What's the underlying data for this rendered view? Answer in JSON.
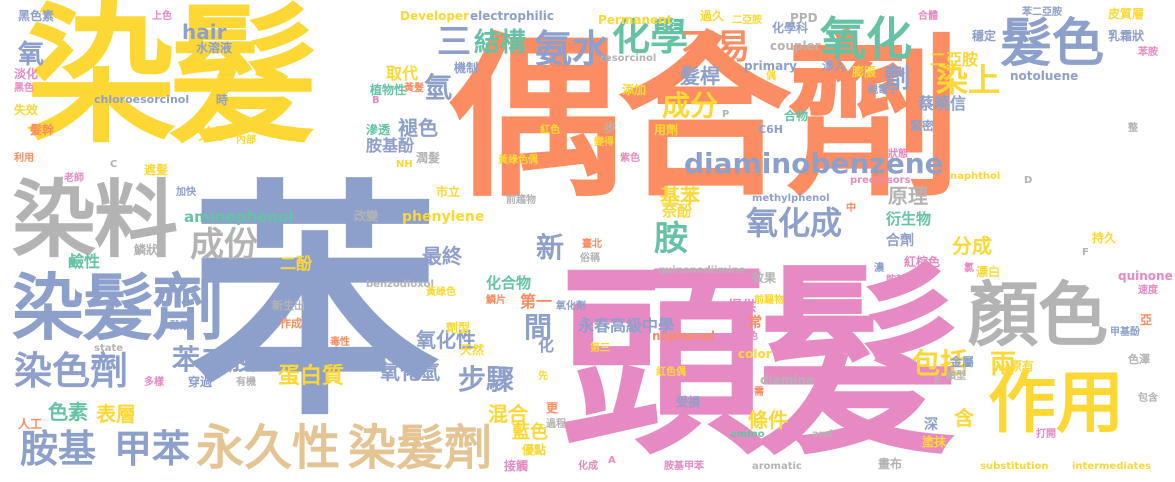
{
  "palette": {
    "yellow": "#fdd835",
    "salmon": "#fc8d62",
    "pink": "#e78ac3",
    "periwinkle": "#8da0cb",
    "gray": "#b3b3b3",
    "tan": "#e5c494",
    "green": "#66c2a5",
    "lime": "#a6d854"
  },
  "words": [
    {
      "text": "染髮",
      "color": "yellow"
    },
    {
      "text": "偶合劑",
      "color": "salmon"
    },
    {
      "text": "頭髮",
      "color": "pink"
    },
    {
      "text": "苯",
      "color": "periwinkle"
    },
    {
      "text": "染料",
      "color": "gray"
    },
    {
      "text": "染髮劑",
      "color": "periwinkle"
    },
    {
      "text": "顏色",
      "color": "gray"
    },
    {
      "text": "作用",
      "color": "yellow"
    },
    {
      "text": "髮色",
      "color": "periwinkle"
    },
    {
      "text": "氧化",
      "color": "green"
    },
    {
      "text": "化學",
      "color": "green"
    },
    {
      "text": "氨水",
      "color": "periwinkle"
    },
    {
      "text": "三",
      "color": "periwinkle"
    },
    {
      "text": "結構",
      "color": "green"
    },
    {
      "text": "不易",
      "color": "salmon"
    },
    {
      "text": "染上",
      "color": "yellow"
    },
    {
      "text": "diaminobenzene",
      "color": "periwinkle"
    },
    {
      "text": "氧化成",
      "color": "periwinkle"
    },
    {
      "text": "成份",
      "color": "gray"
    },
    {
      "text": "永久性",
      "color": "tan"
    },
    {
      "text": "染髮劑",
      "color": "tan"
    },
    {
      "text": "胺基",
      "color": "periwinkle"
    },
    {
      "text": "甲苯",
      "color": "periwinkle"
    },
    {
      "text": "染色劑",
      "color": "periwinkle"
    },
    {
      "text": "苯二胺",
      "color": "periwinkle"
    },
    {
      "text": "步驟",
      "color": "periwinkle"
    },
    {
      "text": "間",
      "color": "periwinkle"
    },
    {
      "text": "胺",
      "color": "green"
    },
    {
      "text": "包括",
      "color": "yellow"
    },
    {
      "text": "兩",
      "color": "yellow"
    },
    {
      "text": "成分",
      "color": "yellow"
    },
    {
      "text": "氫",
      "color": "periwinkle"
    },
    {
      "text": "氧化氫",
      "color": "periwinkle"
    },
    {
      "text": "氧化性",
      "color": "periwinkle"
    },
    {
      "text": "蛋白質",
      "color": "yellow"
    },
    {
      "text": "色素",
      "color": "green"
    },
    {
      "text": "表層",
      "color": "yellow"
    },
    {
      "text": "混合",
      "color": "yellow"
    },
    {
      "text": "原理",
      "color": "gray"
    },
    {
      "text": "基苯",
      "color": "yellow"
    },
    {
      "text": "新",
      "color": "periwinkle"
    },
    {
      "text": "最終",
      "color": "periwinkle"
    },
    {
      "text": "條件",
      "color": "yellow"
    },
    {
      "text": "藍色",
      "color": "yellow"
    },
    {
      "text": "分成",
      "color": "yellow"
    },
    {
      "text": "髮桿",
      "color": "periwinkle"
    },
    {
      "text": "劑",
      "color": "periwinkle"
    },
    {
      "text": "二亞胺",
      "color": "yellow"
    },
    {
      "text": "蔡曉信",
      "color": "periwinkle"
    },
    {
      "text": "aminophenol",
      "color": "green"
    },
    {
      "text": "hair",
      "color": "periwinkle"
    },
    {
      "text": "氧",
      "color": "periwinkle"
    },
    {
      "text": "取代",
      "color": "yellow"
    },
    {
      "text": "褪色",
      "color": "periwinkle"
    },
    {
      "text": "胺基酚",
      "color": "periwinkle"
    },
    {
      "text": "分子",
      "color": "yellow"
    },
    {
      "text": "鹼性",
      "color": "green"
    },
    {
      "text": "二酚",
      "color": "yellow"
    },
    {
      "text": "第一",
      "color": "salmon"
    },
    {
      "text": "化合物",
      "color": "green"
    },
    {
      "text": "奈酚",
      "color": "yellow"
    },
    {
      "text": "衍生物",
      "color": "green"
    },
    {
      "text": "合劑",
      "color": "periwinkle"
    },
    {
      "text": "含",
      "color": "yellow"
    },
    {
      "text": "phenylene",
      "color": "yellow"
    },
    {
      "text": "永春高級中學",
      "color": "periwinkle"
    },
    {
      "text": "化",
      "color": "periwinkle"
    },
    {
      "text": "Developer",
      "color": "yellow"
    },
    {
      "text": "electrophilic",
      "color": "periwinkle"
    },
    {
      "text": "Permanent",
      "color": "yellow"
    },
    {
      "text": "過久",
      "color": "yellow"
    },
    {
      "text": "二亞胺",
      "color": "yellow"
    },
    {
      "text": "PPD",
      "color": "gray"
    },
    {
      "text": "苯二亞胺",
      "color": "periwinkle"
    },
    {
      "text": "皮質層",
      "color": "yellow"
    },
    {
      "text": "乳霜狀",
      "color": "periwinkle"
    },
    {
      "text": "苯胺",
      "color": "pink"
    },
    {
      "text": "黑色素",
      "color": "periwinkle"
    },
    {
      "text": "水溶液",
      "color": "periwinkle"
    },
    {
      "text": "機制",
      "color": "periwinkle"
    },
    {
      "text": "resorcinol",
      "color": "gray"
    },
    {
      "text": "primary",
      "color": "periwinkle"
    },
    {
      "text": "化學科",
      "color": "periwinkle"
    },
    {
      "text": "coupler",
      "color": "gray"
    },
    {
      "text": "穩定",
      "color": "periwinkle"
    },
    {
      "text": "notoluene",
      "color": "periwinkle"
    },
    {
      "text": "淡化",
      "color": "pink"
    },
    {
      "text": "黑色",
      "color": "pink"
    },
    {
      "text": "失效",
      "color": "yellow"
    },
    {
      "text": "髮幹",
      "color": "salmon"
    },
    {
      "text": "chloroesorcinol",
      "color": "periwinkle"
    },
    {
      "text": "時",
      "color": "periwinkle"
    },
    {
      "text": "植物性",
      "color": "green"
    },
    {
      "text": "添加",
      "color": "yellow"
    },
    {
      "text": "膨脹",
      "color": "yellow"
    },
    {
      "text": "滲入",
      "color": "periwinkle"
    },
    {
      "text": "親電子",
      "color": "periwinkle"
    },
    {
      "text": "緊密",
      "color": "periwinkle"
    },
    {
      "text": "合物",
      "color": "green"
    },
    {
      "text": "紅色",
      "color": "yellow"
    },
    {
      "text": "用劑",
      "color": "yellow"
    },
    {
      "text": "C6H",
      "color": "periwinkle"
    },
    {
      "text": "變得",
      "color": "yellow"
    },
    {
      "text": "滲透",
      "color": "green"
    },
    {
      "text": "內部",
      "color": "yellow"
    },
    {
      "text": "潤髮",
      "color": "gray"
    },
    {
      "text": "遮髮",
      "color": "yellow"
    },
    {
      "text": "老師",
      "color": "pink"
    },
    {
      "text": "利用",
      "color": "salmon"
    },
    {
      "text": "市立",
      "color": "yellow"
    },
    {
      "text": "precursors",
      "color": "pink"
    },
    {
      "text": "naphthol",
      "color": "yellow"
    },
    {
      "text": "前趨物",
      "color": "gray"
    },
    {
      "text": "methylphenol",
      "color": "periwinkle"
    },
    {
      "text": "改變",
      "color": "gray"
    },
    {
      "text": "鱗狀",
      "color": "gray"
    },
    {
      "text": "臺北",
      "color": "salmon"
    },
    {
      "text": "俗稱",
      "color": "gray"
    },
    {
      "text": "quinonediimine",
      "color": "gray"
    },
    {
      "text": "效果",
      "color": "gray"
    },
    {
      "text": "持久",
      "color": "yellow"
    },
    {
      "text": "漂白",
      "color": "yellow"
    },
    {
      "text": "quinone",
      "color": "pink"
    },
    {
      "text": "速度",
      "color": "pink"
    },
    {
      "text": "新生出",
      "color": "gray"
    },
    {
      "text": "benzodioxol",
      "color": "gray"
    },
    {
      "text": "作成",
      "color": "salmon"
    },
    {
      "text": "劑型",
      "color": "yellow"
    },
    {
      "text": "天然",
      "color": "yellow"
    },
    {
      "text": "第三",
      "color": "yellow"
    },
    {
      "text": "color",
      "color": "yellow"
    },
    {
      "text": "無色",
      "color": "pink"
    },
    {
      "text": "金屬",
      "color": "periwinkle"
    },
    {
      "text": "甲基酚",
      "color": "periwinkle"
    },
    {
      "text": "亞",
      "color": "salmon"
    },
    {
      "text": "色澤",
      "color": "gray"
    },
    {
      "text": "diamine",
      "color": "gray"
    },
    {
      "text": "紅色偶",
      "color": "yellow"
    },
    {
      "text": "受損",
      "color": "periwinkle"
    },
    {
      "text": "更",
      "color": "salmon"
    },
    {
      "text": "優點",
      "color": "yellow"
    },
    {
      "text": "塗抹",
      "color": "yellow"
    },
    {
      "text": "深",
      "color": "periwinkle"
    },
    {
      "text": "人工",
      "color": "salmon"
    },
    {
      "text": "接觸",
      "color": "pink"
    },
    {
      "text": "化成",
      "color": "pink"
    },
    {
      "text": "胺基甲苯",
      "color": "pink"
    },
    {
      "text": "aromatic",
      "color": "gray"
    },
    {
      "text": "畫布",
      "color": "gray"
    },
    {
      "text": "substitution",
      "color": "yellow"
    },
    {
      "text": "intermediates",
      "color": "yellow"
    },
    {
      "text": "打開",
      "color": "pink"
    },
    {
      "text": "amino",
      "color": "green"
    },
    {
      "text": "ami",
      "color": "gray"
    },
    {
      "text": "dimine",
      "color": "pink"
    },
    {
      "text": "原有",
      "color": "yellow"
    },
    {
      "text": "穿過",
      "color": "periwinkle"
    },
    {
      "text": "有機",
      "color": "gray"
    },
    {
      "text": "nophenol",
      "color": "salmon"
    },
    {
      "text": "狀態",
      "color": "pink"
    },
    {
      "text": "酚類",
      "color": "periwinkle"
    },
    {
      "text": "state",
      "color": "gray"
    },
    {
      "text": "多樣",
      "color": "pink"
    },
    {
      "text": "上色",
      "color": "pink"
    },
    {
      "text": "毒性",
      "color": "salmon"
    },
    {
      "text": "萘類",
      "color": "periwinkle"
    },
    {
      "text": "加快",
      "color": "periwinkle"
    },
    {
      "text": "類型",
      "color": "gray"
    },
    {
      "text": "前驅物",
      "color": "yellow"
    },
    {
      "text": "提供",
      "color": "pink"
    },
    {
      "text": "常",
      "color": "salmon"
    },
    {
      "text": "需",
      "color": "salmon"
    },
    {
      "text": "過程",
      "color": "gray"
    },
    {
      "text": "包含",
      "color": "gray"
    },
    {
      "text": "紫色",
      "color": "pink"
    },
    {
      "text": "黃綠色偶",
      "color": "yellow"
    },
    {
      "text": "氧化劑",
      "color": "periwinkle"
    },
    {
      "text": "鱗片",
      "color": "salmon"
    },
    {
      "text": "步",
      "color": "gray"
    },
    {
      "text": "先",
      "color": "yellow"
    },
    {
      "text": "diami",
      "color": "pink"
    },
    {
      "text": "黃綠色",
      "color": "yellow"
    },
    {
      "text": "紅棕色",
      "color": "pink"
    },
    {
      "text": "濃",
      "color": "periwinkle"
    },
    {
      "text": "胺基",
      "color": "pink"
    },
    {
      "text": "氯",
      "color": "pink"
    },
    {
      "text": "合體",
      "color": "pink"
    },
    {
      "text": "黃髮",
      "color": "salmon"
    },
    {
      "text": "偶",
      "color": "yellow"
    },
    {
      "text": "整",
      "color": "gray"
    },
    {
      "text": "中",
      "color": "salmon"
    },
    {
      "text": "F",
      "color": "gray"
    },
    {
      "text": "D",
      "color": "gray"
    },
    {
      "text": "C",
      "color": "gray"
    },
    {
      "text": "P",
      "color": "gray"
    },
    {
      "text": "E",
      "color": "gray"
    },
    {
      "text": "A",
      "color": "pink"
    },
    {
      "text": "B",
      "color": "pink"
    },
    {
      "text": "NH",
      "color": "yellow"
    },
    {
      "text": "OH",
      "color": "gray"
    }
  ]
}
